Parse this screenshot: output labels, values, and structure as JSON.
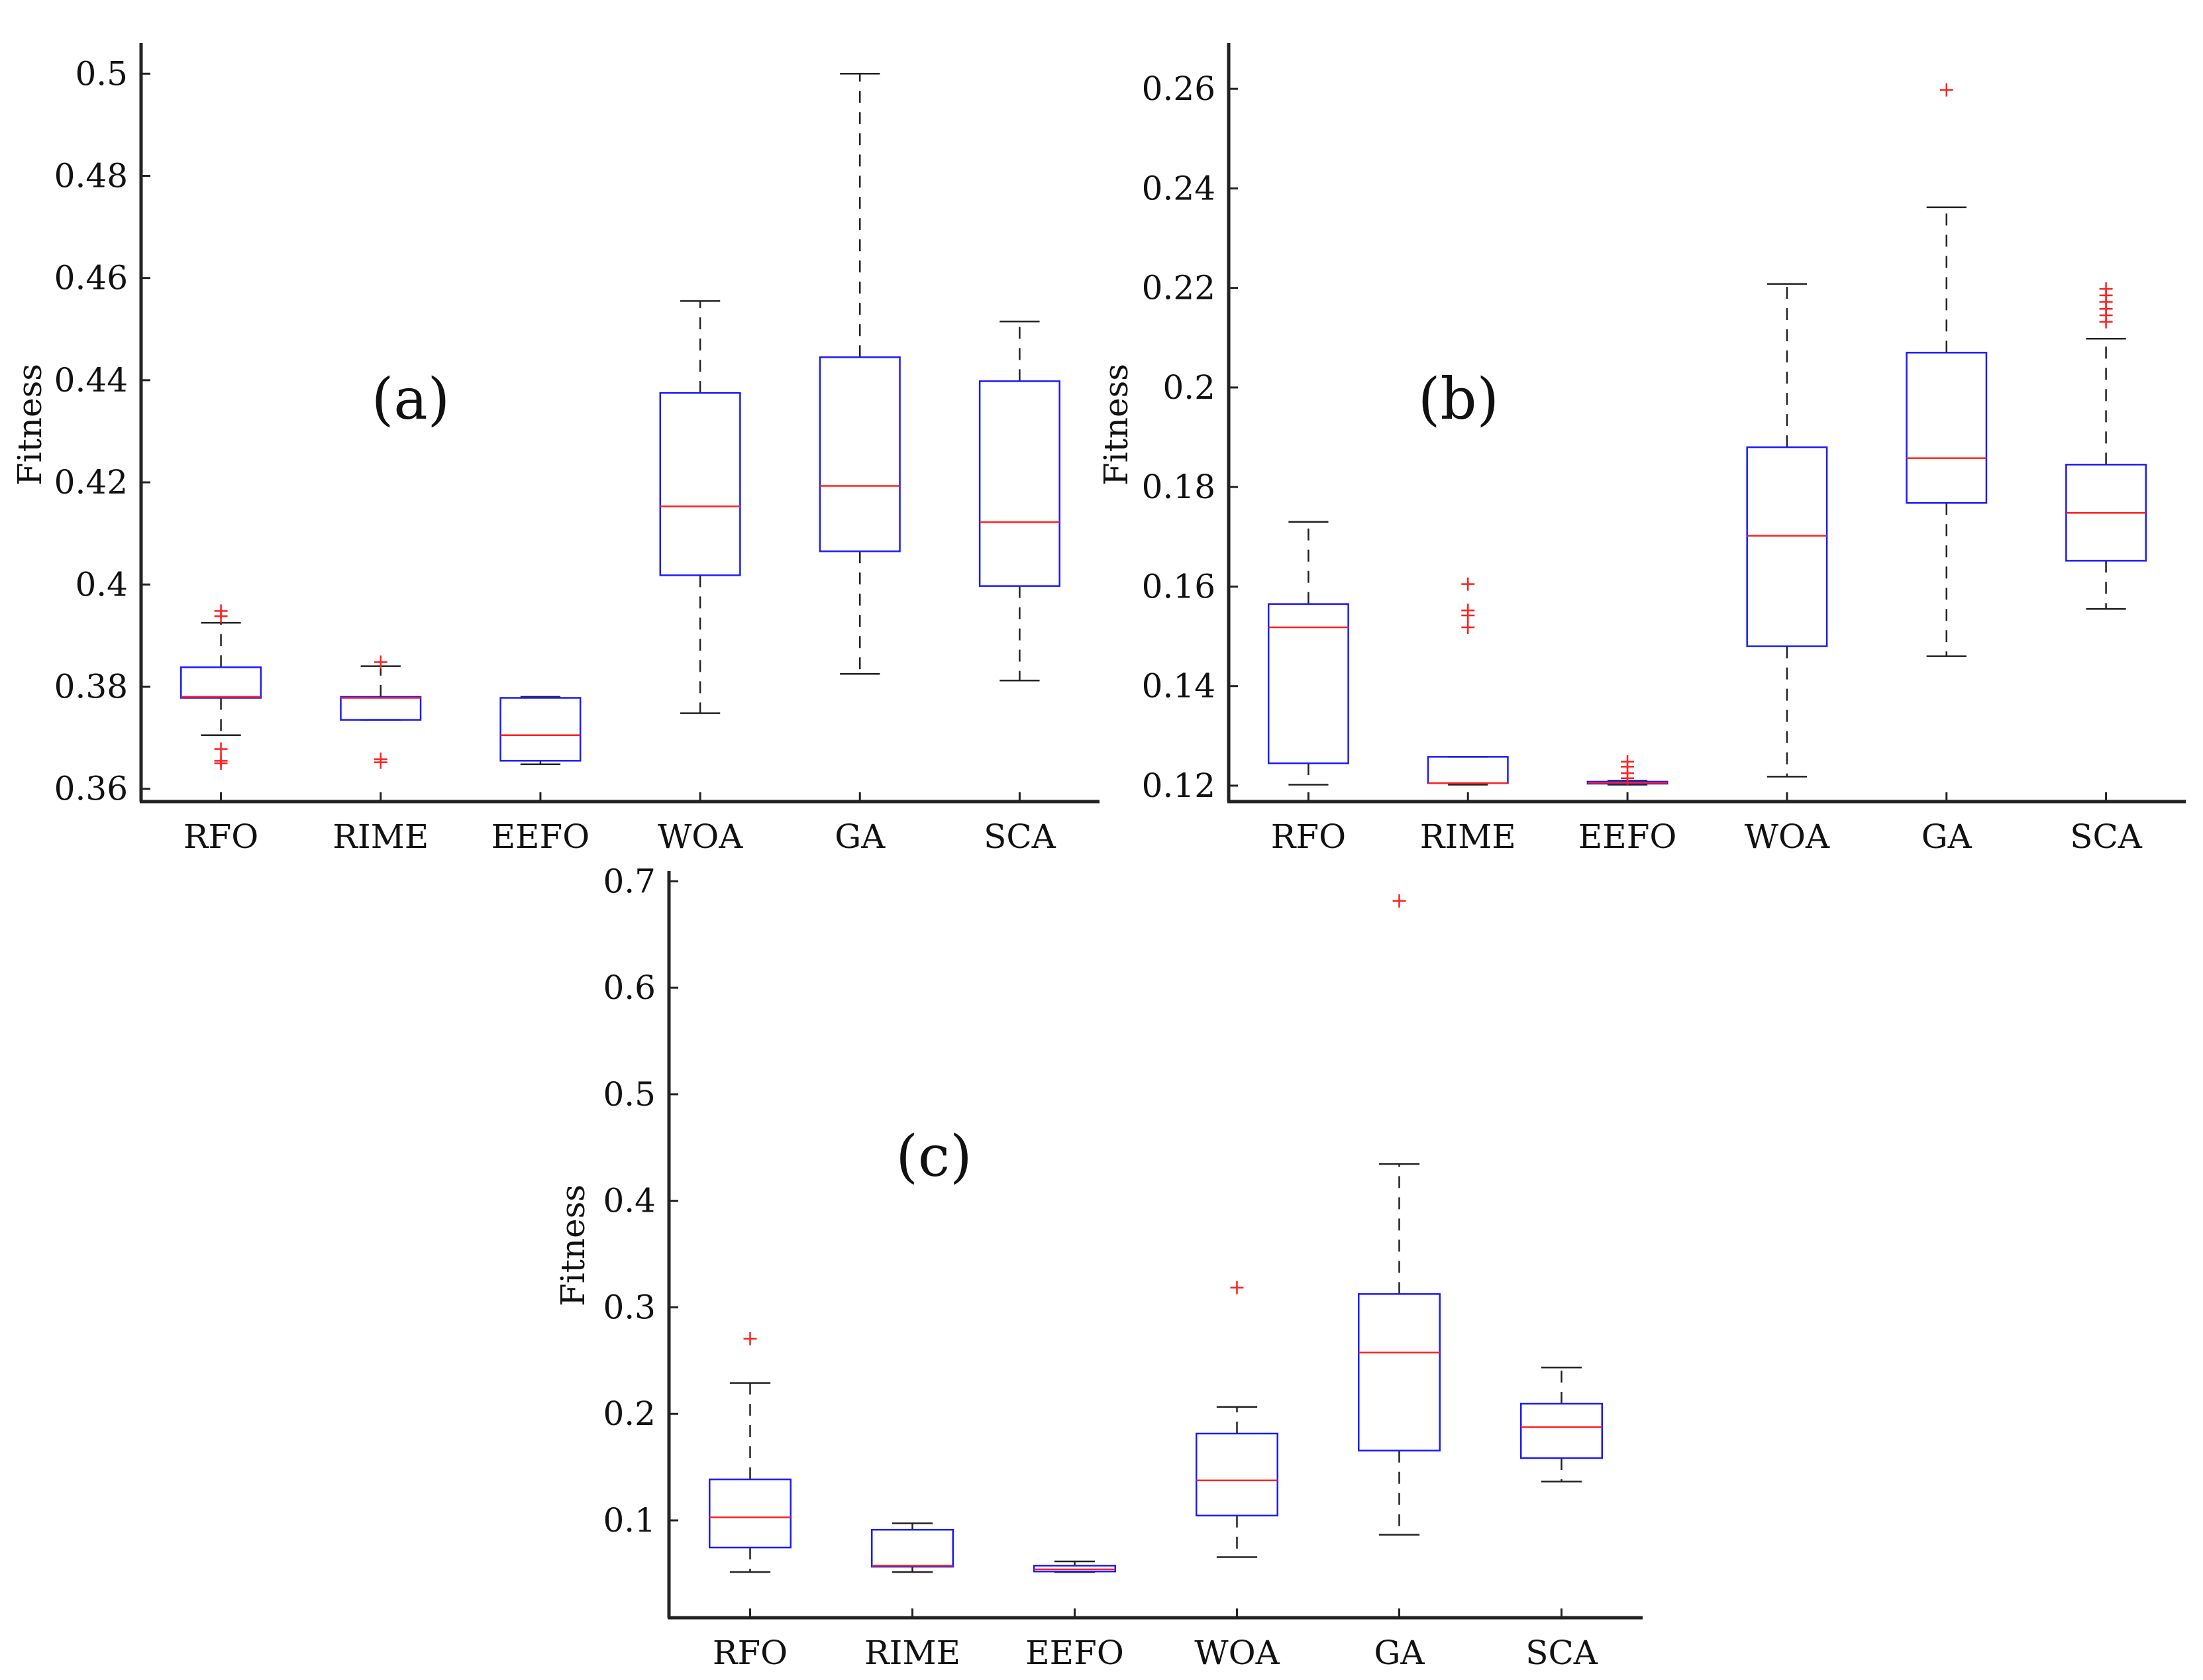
{
  "colors": {
    "axis": "#222222",
    "box": "#1a1aff",
    "median": "#ff2020",
    "whisker": "#222222",
    "outlier": "#ff2020"
  },
  "chart_data": [
    {
      "type": "box",
      "panel_label": "(a)",
      "ylabel": "Fitness",
      "ylim": [
        0.3575,
        0.506
      ],
      "yticks": [
        0.36,
        0.38,
        0.4,
        0.42,
        0.44,
        0.46,
        0.48,
        0.5
      ],
      "ytick_labels": [
        "0.36",
        "0.38",
        "0.4",
        "0.42",
        "0.44",
        "0.46",
        "0.48",
        "0.5"
      ],
      "categories": [
        "RFO",
        "RIME",
        "EEFO",
        "WOA",
        "GA",
        "SCA"
      ],
      "boxes": [
        {
          "whisker_low": 0.3705,
          "q1": 0.3778,
          "median": 0.378,
          "q3": 0.3838,
          "whisker_high": 0.3925,
          "outliers": [
            0.3948,
            0.3938,
            0.3678,
            0.3655,
            0.365
          ]
        },
        {
          "whisker_low": 0.3735,
          "q1": 0.3735,
          "median": 0.3778,
          "q3": 0.378,
          "whisker_high": 0.384,
          "outliers": [
            0.3848,
            0.3658,
            0.3652
          ]
        },
        {
          "whisker_low": 0.3648,
          "q1": 0.3655,
          "median": 0.3705,
          "q3": 0.3778,
          "whisker_high": 0.378,
          "outliers": []
        },
        {
          "whisker_low": 0.3748,
          "q1": 0.4018,
          "median": 0.4153,
          "q3": 0.4375,
          "whisker_high": 0.4555,
          "outliers": []
        },
        {
          "whisker_low": 0.3825,
          "q1": 0.4065,
          "median": 0.4193,
          "q3": 0.4445,
          "whisker_high": 0.5,
          "outliers": []
        },
        {
          "whisker_low": 0.3812,
          "q1": 0.3997,
          "median": 0.4122,
          "q3": 0.4398,
          "whisker_high": 0.4515,
          "outliers": []
        }
      ]
    },
    {
      "type": "box",
      "panel_label": "(b)",
      "ylabel": "Fitness",
      "ylim": [
        0.1168,
        0.2692
      ],
      "yticks": [
        0.12,
        0.14,
        0.16,
        0.18,
        0.2,
        0.22,
        0.24,
        0.26
      ],
      "ytick_labels": [
        "0.12",
        "0.14",
        "0.16",
        "0.18",
        "0.2",
        "0.22",
        "0.24",
        "0.26"
      ],
      "categories": [
        "RFO",
        "RIME",
        "EEFO",
        "WOA",
        "GA",
        "SCA"
      ],
      "boxes": [
        {
          "whisker_low": 0.1202,
          "q1": 0.1245,
          "median": 0.1518,
          "q3": 0.1565,
          "whisker_high": 0.173,
          "outliers": []
        },
        {
          "whisker_low": 0.1202,
          "q1": 0.1205,
          "median": 0.1205,
          "q3": 0.1258,
          "whisker_high": 0.1258,
          "outliers": [
            0.1605,
            0.1552,
            0.1542,
            0.1518
          ]
        },
        {
          "whisker_low": 0.1202,
          "q1": 0.1204,
          "median": 0.1206,
          "q3": 0.1208,
          "whisker_high": 0.121,
          "outliers": [
            0.1248,
            0.1238,
            0.1225,
            0.1215
          ]
        },
        {
          "whisker_low": 0.1218,
          "q1": 0.148,
          "median": 0.1702,
          "q3": 0.188,
          "whisker_high": 0.2208,
          "outliers": []
        },
        {
          "whisker_low": 0.146,
          "q1": 0.1768,
          "median": 0.1858,
          "q3": 0.207,
          "whisker_high": 0.2362,
          "outliers": [
            0.2598
          ]
        },
        {
          "whisker_low": 0.1555,
          "q1": 0.1652,
          "median": 0.1748,
          "q3": 0.1845,
          "whisker_high": 0.2098,
          "outliers": [
            0.2198,
            0.2185,
            0.2172,
            0.2158,
            0.2145,
            0.2132
          ]
        }
      ]
    },
    {
      "type": "box",
      "panel_label": "(c)",
      "ylabel": "Fitness",
      "ylim": [
        0.0086,
        0.7095
      ],
      "yticks": [
        0.1,
        0.2,
        0.3,
        0.4,
        0.5,
        0.6,
        0.7
      ],
      "ytick_labels": [
        "0.1",
        "0.2",
        "0.3",
        "0.4",
        "0.5",
        "0.6",
        "0.7"
      ],
      "categories": [
        "RFO",
        "RIME",
        "EEFO",
        "WOA",
        "GA",
        "SCA"
      ],
      "boxes": [
        {
          "whisker_low": 0.0515,
          "q1": 0.0745,
          "median": 0.1028,
          "q3": 0.1385,
          "whisker_high": 0.229,
          "outliers": [
            0.2705
          ]
        },
        {
          "whisker_low": 0.0515,
          "q1": 0.0565,
          "median": 0.0575,
          "q3": 0.0912,
          "whisker_high": 0.0972,
          "outliers": []
        },
        {
          "whisker_low": 0.0515,
          "q1": 0.052,
          "median": 0.054,
          "q3": 0.0575,
          "whisker_high": 0.0615,
          "outliers": []
        },
        {
          "whisker_low": 0.0655,
          "q1": 0.1045,
          "median": 0.1375,
          "q3": 0.1815,
          "whisker_high": 0.2065,
          "outliers": [
            0.3185
          ]
        },
        {
          "whisker_low": 0.0865,
          "q1": 0.1655,
          "median": 0.2575,
          "q3": 0.3125,
          "whisker_high": 0.4345,
          "outliers": [
            0.6815
          ]
        },
        {
          "whisker_low": 0.1365,
          "q1": 0.1585,
          "median": 0.1875,
          "q3": 0.2095,
          "whisker_high": 0.2435,
          "outliers": []
        }
      ]
    }
  ]
}
